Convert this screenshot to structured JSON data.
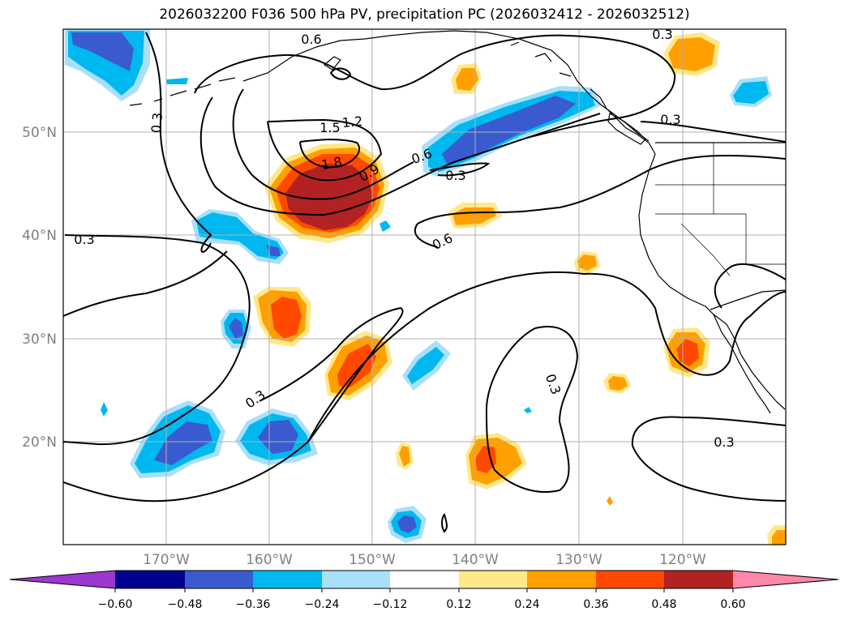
{
  "title": "2026032200 F036 500 hPa PV, precipitation PC (2026032412 - 2026032512)",
  "colors": {
    "frame": "#000000",
    "grid": "#b0b0b0",
    "coast": "#000000",
    "contour": "#000000",
    "neg": [
      "#9a38d0",
      "#000090",
      "#3a5bd0",
      "#00b8f0",
      "#a8e0fa",
      "#ffffff"
    ],
    "pos": [
      "#ffffff",
      "#ffe88a",
      "#ffa000",
      "#ff4800",
      "#b22222",
      "#ff88aa"
    ]
  },
  "map": {
    "lat_labels": [
      "50°N",
      "40°N",
      "30°N",
      "20°N"
    ],
    "lon_labels": [
      "170°W",
      "160°W",
      "150°W",
      "140°W",
      "130°W",
      "120°W"
    ]
  },
  "contour_labels": [
    {
      "text": "0.6"
    },
    {
      "text": "0.3"
    },
    {
      "text": "0.3"
    },
    {
      "text": "1.2"
    },
    {
      "text": "1.5"
    },
    {
      "text": "1.8"
    },
    {
      "text": "0.9"
    },
    {
      "text": "0.6"
    },
    {
      "text": "0.3"
    },
    {
      "text": "0.3"
    },
    {
      "text": "0.3"
    },
    {
      "text": "0.6"
    },
    {
      "text": "0.3"
    },
    {
      "text": "0.3"
    },
    {
      "text": "0.3"
    }
  ],
  "colorbar": {
    "ticks": [
      "−0.60",
      "−0.48",
      "−0.36",
      "−0.24",
      "−0.12",
      "0.12",
      "0.24",
      "0.36",
      "0.48",
      "0.60"
    ]
  }
}
